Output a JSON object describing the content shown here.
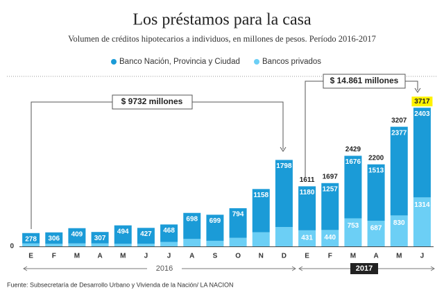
{
  "chart_data": {
    "type": "stacked_bar",
    "title": "Los préstamos para la casa",
    "subtitle": "Volumen de créditos hipotecarios a individuos, en millones de pesos. Período 2016-2017",
    "categories": [
      "E",
      "F",
      "M",
      "A",
      "M",
      "J",
      "J",
      "A",
      "S",
      "O",
      "N",
      "D",
      "E",
      "F",
      "M",
      "A",
      "M",
      "J"
    ],
    "series": [
      {
        "name": "Banco Nación, Provincia y Ciudad",
        "color": "#1b9bd7",
        "values": [
          278,
          306,
          409,
          307,
          494,
          427,
          468,
          698,
          699,
          794,
          1158,
          1798,
          1180,
          1257,
          1676,
          1513,
          2377,
          2403
        ]
      },
      {
        "name": "Bancos privados",
        "color": "#6ccff5",
        "values": [
          80,
          70,
          80,
          80,
          70,
          70,
          120,
          200,
          150,
          230,
          380,
          520,
          431,
          440,
          753,
          687,
          830,
          1314
        ],
        "value_labels": [
          null,
          null,
          null,
          null,
          null,
          null,
          null,
          null,
          null,
          null,
          null,
          null,
          "431",
          "440",
          "753",
          "687",
          "830",
          "1314"
        ]
      }
    ],
    "totals": [
      null,
      null,
      null,
      null,
      null,
      null,
      null,
      null,
      null,
      null,
      null,
      null,
      1611,
      1697,
      2429,
      2200,
      3207,
      3717
    ],
    "ylim": [
      0,
      4000
    ],
    "yticks": [
      0
    ],
    "years": [
      "2016",
      "2017"
    ],
    "annotations": [
      "$ 9732 millones",
      "$ 14.861 millones"
    ],
    "source": "Fuente: Subsecretaría de Desarrollo Urbano y Vivienda de la Nación/ LA NACION"
  }
}
